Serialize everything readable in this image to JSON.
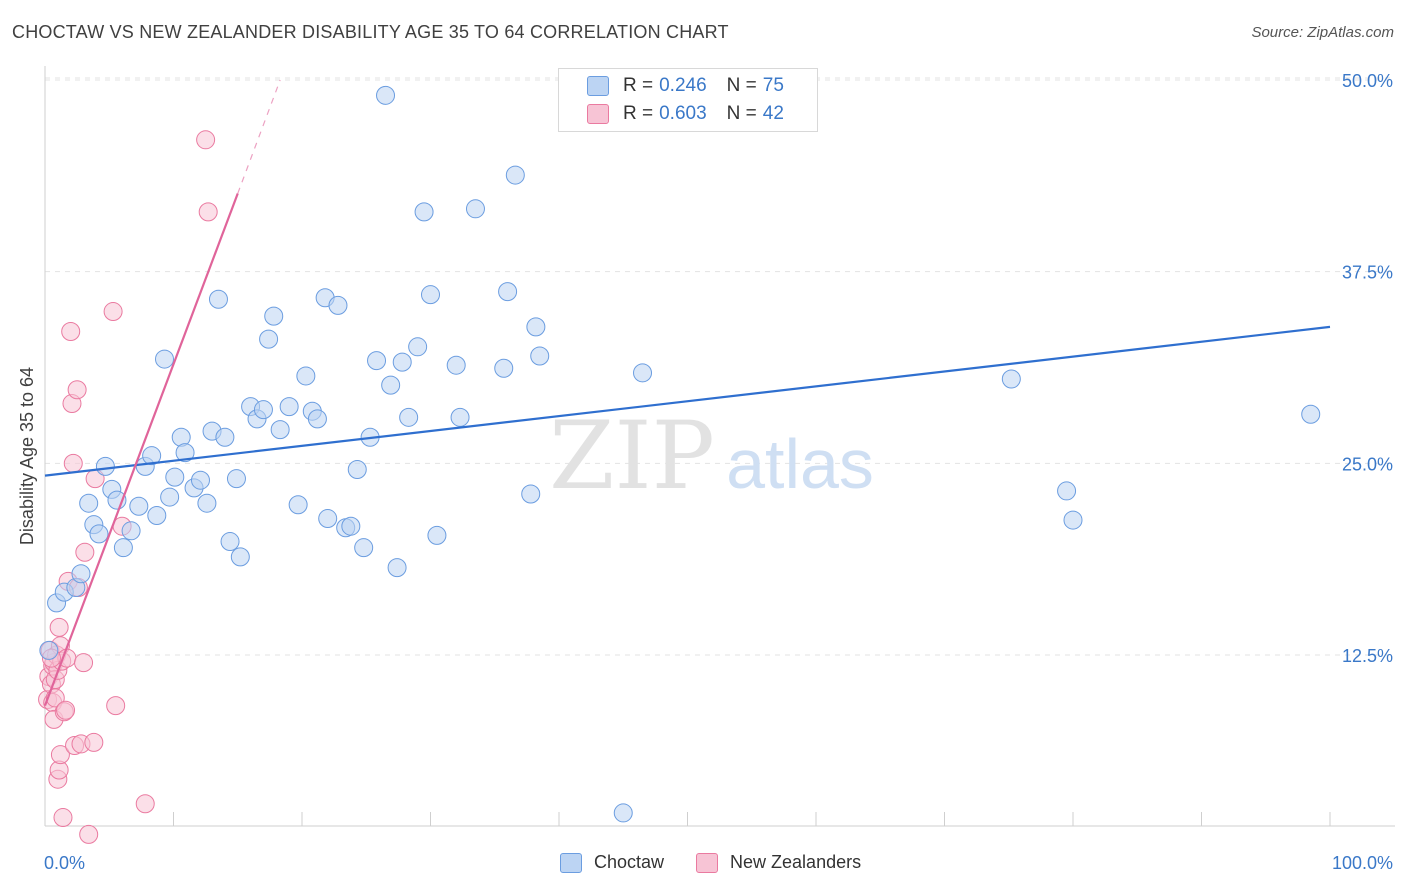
{
  "title": "CHOCTAW VS NEW ZEALANDER DISABILITY AGE 35 TO 64 CORRELATION CHART",
  "source": "Source: ZipAtlas.com",
  "watermark": {
    "zip": "ZIP",
    "atlas": "atlas"
  },
  "legend": {
    "choctaw": {
      "r_label": "R = ",
      "r_value": "0.246",
      "n_label": "N = ",
      "n_value": "75"
    },
    "nz": {
      "r_label": "R = ",
      "r_value": "0.603",
      "n_label": "N = ",
      "n_value": "42"
    }
  },
  "colors": {
    "choctaw": "#6b9de0",
    "choctaw_fill": "#bcd4f3",
    "choctaw_line": "#2f6fcf",
    "nz": "#ea7aa0",
    "nz_fill": "#f7c4d5",
    "nz_line": "#e0649a",
    "axis_text": "#3a78c8"
  },
  "chart_data": {
    "type": "scatter",
    "title": "CHOCTAW VS NEW ZEALANDER DISABILITY AGE 35 TO 64 CORRELATION CHART",
    "xlabel": "",
    "ylabel": "Disability Age 35 to 64",
    "xlim": [
      0,
      100
    ],
    "ylim": [
      0,
      52
    ],
    "x_tick_labels": [
      "0.0%",
      "100.0%"
    ],
    "y_ticks": [
      12.5,
      25.0,
      37.5,
      50.0
    ],
    "y_tick_labels": [
      "12.5%",
      "25.0%",
      "37.5%",
      "50.0%"
    ],
    "legend_position": "top-center",
    "series": [
      {
        "name": "Choctaw",
        "r": 0.246,
        "n": 75,
        "trend": {
          "x": [
            0,
            100
          ],
          "y": [
            24.2,
            33.9
          ]
        },
        "points": [
          [
            0.9,
            15.9
          ],
          [
            1.5,
            16.6
          ],
          [
            2.4,
            16.9
          ],
          [
            2.8,
            17.8
          ],
          [
            3.4,
            22.4
          ],
          [
            3.8,
            21.0
          ],
          [
            4.2,
            20.4
          ],
          [
            4.7,
            24.8
          ],
          [
            5.2,
            23.3
          ],
          [
            5.6,
            22.6
          ],
          [
            6.1,
            19.5
          ],
          [
            6.7,
            20.6
          ],
          [
            7.3,
            22.2
          ],
          [
            7.8,
            24.8
          ],
          [
            8.3,
            25.5
          ],
          [
            8.7,
            21.6
          ],
          [
            9.3,
            31.8
          ],
          [
            9.7,
            22.8
          ],
          [
            10.1,
            24.1
          ],
          [
            10.6,
            26.7
          ],
          [
            10.9,
            25.7
          ],
          [
            11.6,
            23.4
          ],
          [
            12.1,
            23.9
          ],
          [
            12.6,
            22.4
          ],
          [
            13.0,
            27.1
          ],
          [
            14.0,
            26.7
          ],
          [
            14.4,
            19.9
          ],
          [
            14.9,
            24.0
          ],
          [
            15.2,
            18.9
          ],
          [
            13.5,
            35.7
          ],
          [
            16.0,
            28.7
          ],
          [
            16.5,
            27.9
          ],
          [
            17.0,
            28.5
          ],
          [
            17.4,
            33.1
          ],
          [
            17.8,
            34.6
          ],
          [
            18.3,
            27.2
          ],
          [
            19.0,
            28.7
          ],
          [
            19.7,
            22.3
          ],
          [
            20.3,
            30.7
          ],
          [
            20.8,
            28.4
          ],
          [
            21.2,
            27.9
          ],
          [
            21.8,
            35.8
          ],
          [
            22.0,
            21.4
          ],
          [
            22.8,
            35.3
          ],
          [
            23.4,
            20.8
          ],
          [
            23.8,
            20.9
          ],
          [
            24.3,
            24.6
          ],
          [
            24.8,
            19.5
          ],
          [
            25.3,
            26.7
          ],
          [
            25.8,
            31.7
          ],
          [
            26.5,
            49.0
          ],
          [
            26.9,
            30.1
          ],
          [
            27.4,
            18.2
          ],
          [
            27.8,
            31.6
          ],
          [
            28.3,
            28.0
          ],
          [
            29.0,
            32.6
          ],
          [
            29.5,
            41.4
          ],
          [
            30.0,
            36.0
          ],
          [
            30.5,
            20.3
          ],
          [
            32.0,
            31.4
          ],
          [
            32.3,
            28.0
          ],
          [
            33.5,
            41.6
          ],
          [
            35.7,
            31.2
          ],
          [
            36.0,
            36.2
          ],
          [
            36.6,
            43.8
          ],
          [
            37.8,
            23.0
          ],
          [
            38.2,
            33.9
          ],
          [
            38.5,
            32.0
          ],
          [
            45.0,
            2.2
          ],
          [
            46.5,
            30.9
          ],
          [
            75.2,
            30.5
          ],
          [
            79.5,
            23.2
          ],
          [
            80.0,
            21.3
          ],
          [
            98.5,
            28.2
          ],
          [
            0.3,
            12.8
          ]
        ]
      },
      {
        "name": "New Zealanders",
        "r": 0.603,
        "n": 42,
        "trend": {
          "x": [
            0,
            15
          ],
          "y": [
            9.2,
            42.6
          ]
        },
        "trend_dashed": {
          "x": [
            15,
            18.3
          ],
          "y": [
            42.6,
            50.0
          ]
        },
        "points": [
          [
            0.2,
            9.6
          ],
          [
            0.3,
            11.1
          ],
          [
            0.4,
            12.8
          ],
          [
            0.5,
            10.6
          ],
          [
            0.6,
            9.4
          ],
          [
            0.6,
            11.8
          ],
          [
            0.7,
            8.3
          ],
          [
            0.7,
            12.0
          ],
          [
            0.8,
            10.9
          ],
          [
            0.8,
            9.7
          ],
          [
            0.9,
            12.5
          ],
          [
            1.0,
            11.5
          ],
          [
            1.0,
            4.4
          ],
          [
            1.1,
            14.3
          ],
          [
            1.1,
            5.0
          ],
          [
            1.2,
            13.1
          ],
          [
            1.2,
            6.0
          ],
          [
            1.3,
            12.1
          ],
          [
            1.4,
            1.9
          ],
          [
            1.5,
            8.8
          ],
          [
            1.6,
            8.9
          ],
          [
            1.7,
            12.3
          ],
          [
            1.8,
            17.3
          ],
          [
            2.0,
            33.6
          ],
          [
            2.1,
            28.9
          ],
          [
            2.2,
            25.0
          ],
          [
            2.3,
            6.6
          ],
          [
            2.5,
            29.8
          ],
          [
            2.6,
            16.9
          ],
          [
            2.8,
            6.7
          ],
          [
            3.0,
            12.0
          ],
          [
            3.1,
            19.2
          ],
          [
            3.4,
            0.8
          ],
          [
            3.8,
            6.8
          ],
          [
            3.9,
            24.0
          ],
          [
            5.3,
            34.9
          ],
          [
            5.5,
            9.2
          ],
          [
            6.0,
            20.9
          ],
          [
            7.8,
            2.8
          ],
          [
            12.7,
            41.4
          ],
          [
            12.5,
            46.1
          ],
          [
            0.5,
            12.3
          ]
        ]
      }
    ]
  }
}
